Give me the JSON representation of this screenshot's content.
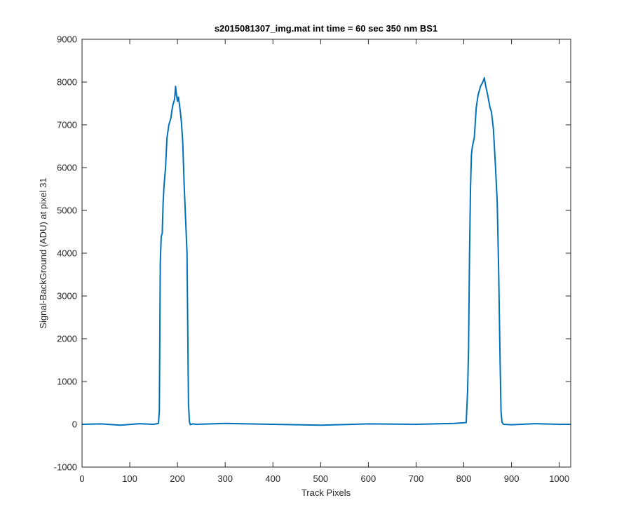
{
  "chart_data": {
    "type": "line",
    "title": "s2015081307_img.mat int time = 60 sec  350 nm BS1",
    "xlabel": "Track Pixels",
    "ylabel": "Signal-BackGround (ADU) at pixel 31",
    "xlim": [
      0,
      1024
    ],
    "ylim": [
      -1000,
      9000
    ],
    "xticks": [
      0,
      100,
      200,
      300,
      400,
      500,
      600,
      700,
      800,
      900,
      1000
    ],
    "yticks": [
      -1000,
      0,
      1000,
      2000,
      3000,
      4000,
      5000,
      6000,
      7000,
      8000,
      9000
    ],
    "xtick_labels": [
      "0",
      "100",
      "200",
      "300",
      "400",
      "500",
      "600",
      "700",
      "800",
      "900",
      "1000"
    ],
    "ytick_labels": [
      "-1000",
      "0",
      "1000",
      "2000",
      "3000",
      "4000",
      "5000",
      "6000",
      "7000",
      "8000",
      "9000"
    ],
    "grid": false,
    "line_color": "#0072BD",
    "series": [
      {
        "x": [
          0,
          40,
          80,
          120,
          150,
          160,
          162,
          164,
          166,
          168,
          170,
          172,
          175,
          178,
          182,
          186,
          190,
          194,
          196,
          198,
          200,
          202,
          205,
          208,
          211,
          214,
          217,
          220,
          223,
          225,
          227,
          229,
          232,
          240,
          300,
          400,
          500,
          600,
          700,
          780,
          805,
          808,
          810,
          812,
          814,
          816,
          818,
          822,
          826,
          830,
          835,
          840,
          843,
          846,
          850,
          855,
          858,
          862,
          866,
          870,
          873,
          876,
          878,
          880,
          883,
          900,
          950,
          1000,
          1024
        ],
        "y": [
          0,
          10,
          -20,
          15,
          0,
          20,
          300,
          3800,
          4400,
          4450,
          5200,
          5600,
          6000,
          6700,
          7000,
          7150,
          7450,
          7600,
          7900,
          7700,
          7550,
          7650,
          7400,
          7100,
          6600,
          5600,
          4800,
          4000,
          500,
          60,
          -10,
          0,
          10,
          0,
          20,
          0,
          -20,
          10,
          0,
          20,
          40,
          800,
          1800,
          4000,
          5500,
          6300,
          6500,
          6700,
          7400,
          7700,
          7900,
          8000,
          8100,
          7900,
          7700,
          7400,
          7300,
          6900,
          6100,
          5200,
          3600,
          1500,
          300,
          50,
          0,
          -10,
          15,
          0,
          0
        ]
      }
    ]
  }
}
